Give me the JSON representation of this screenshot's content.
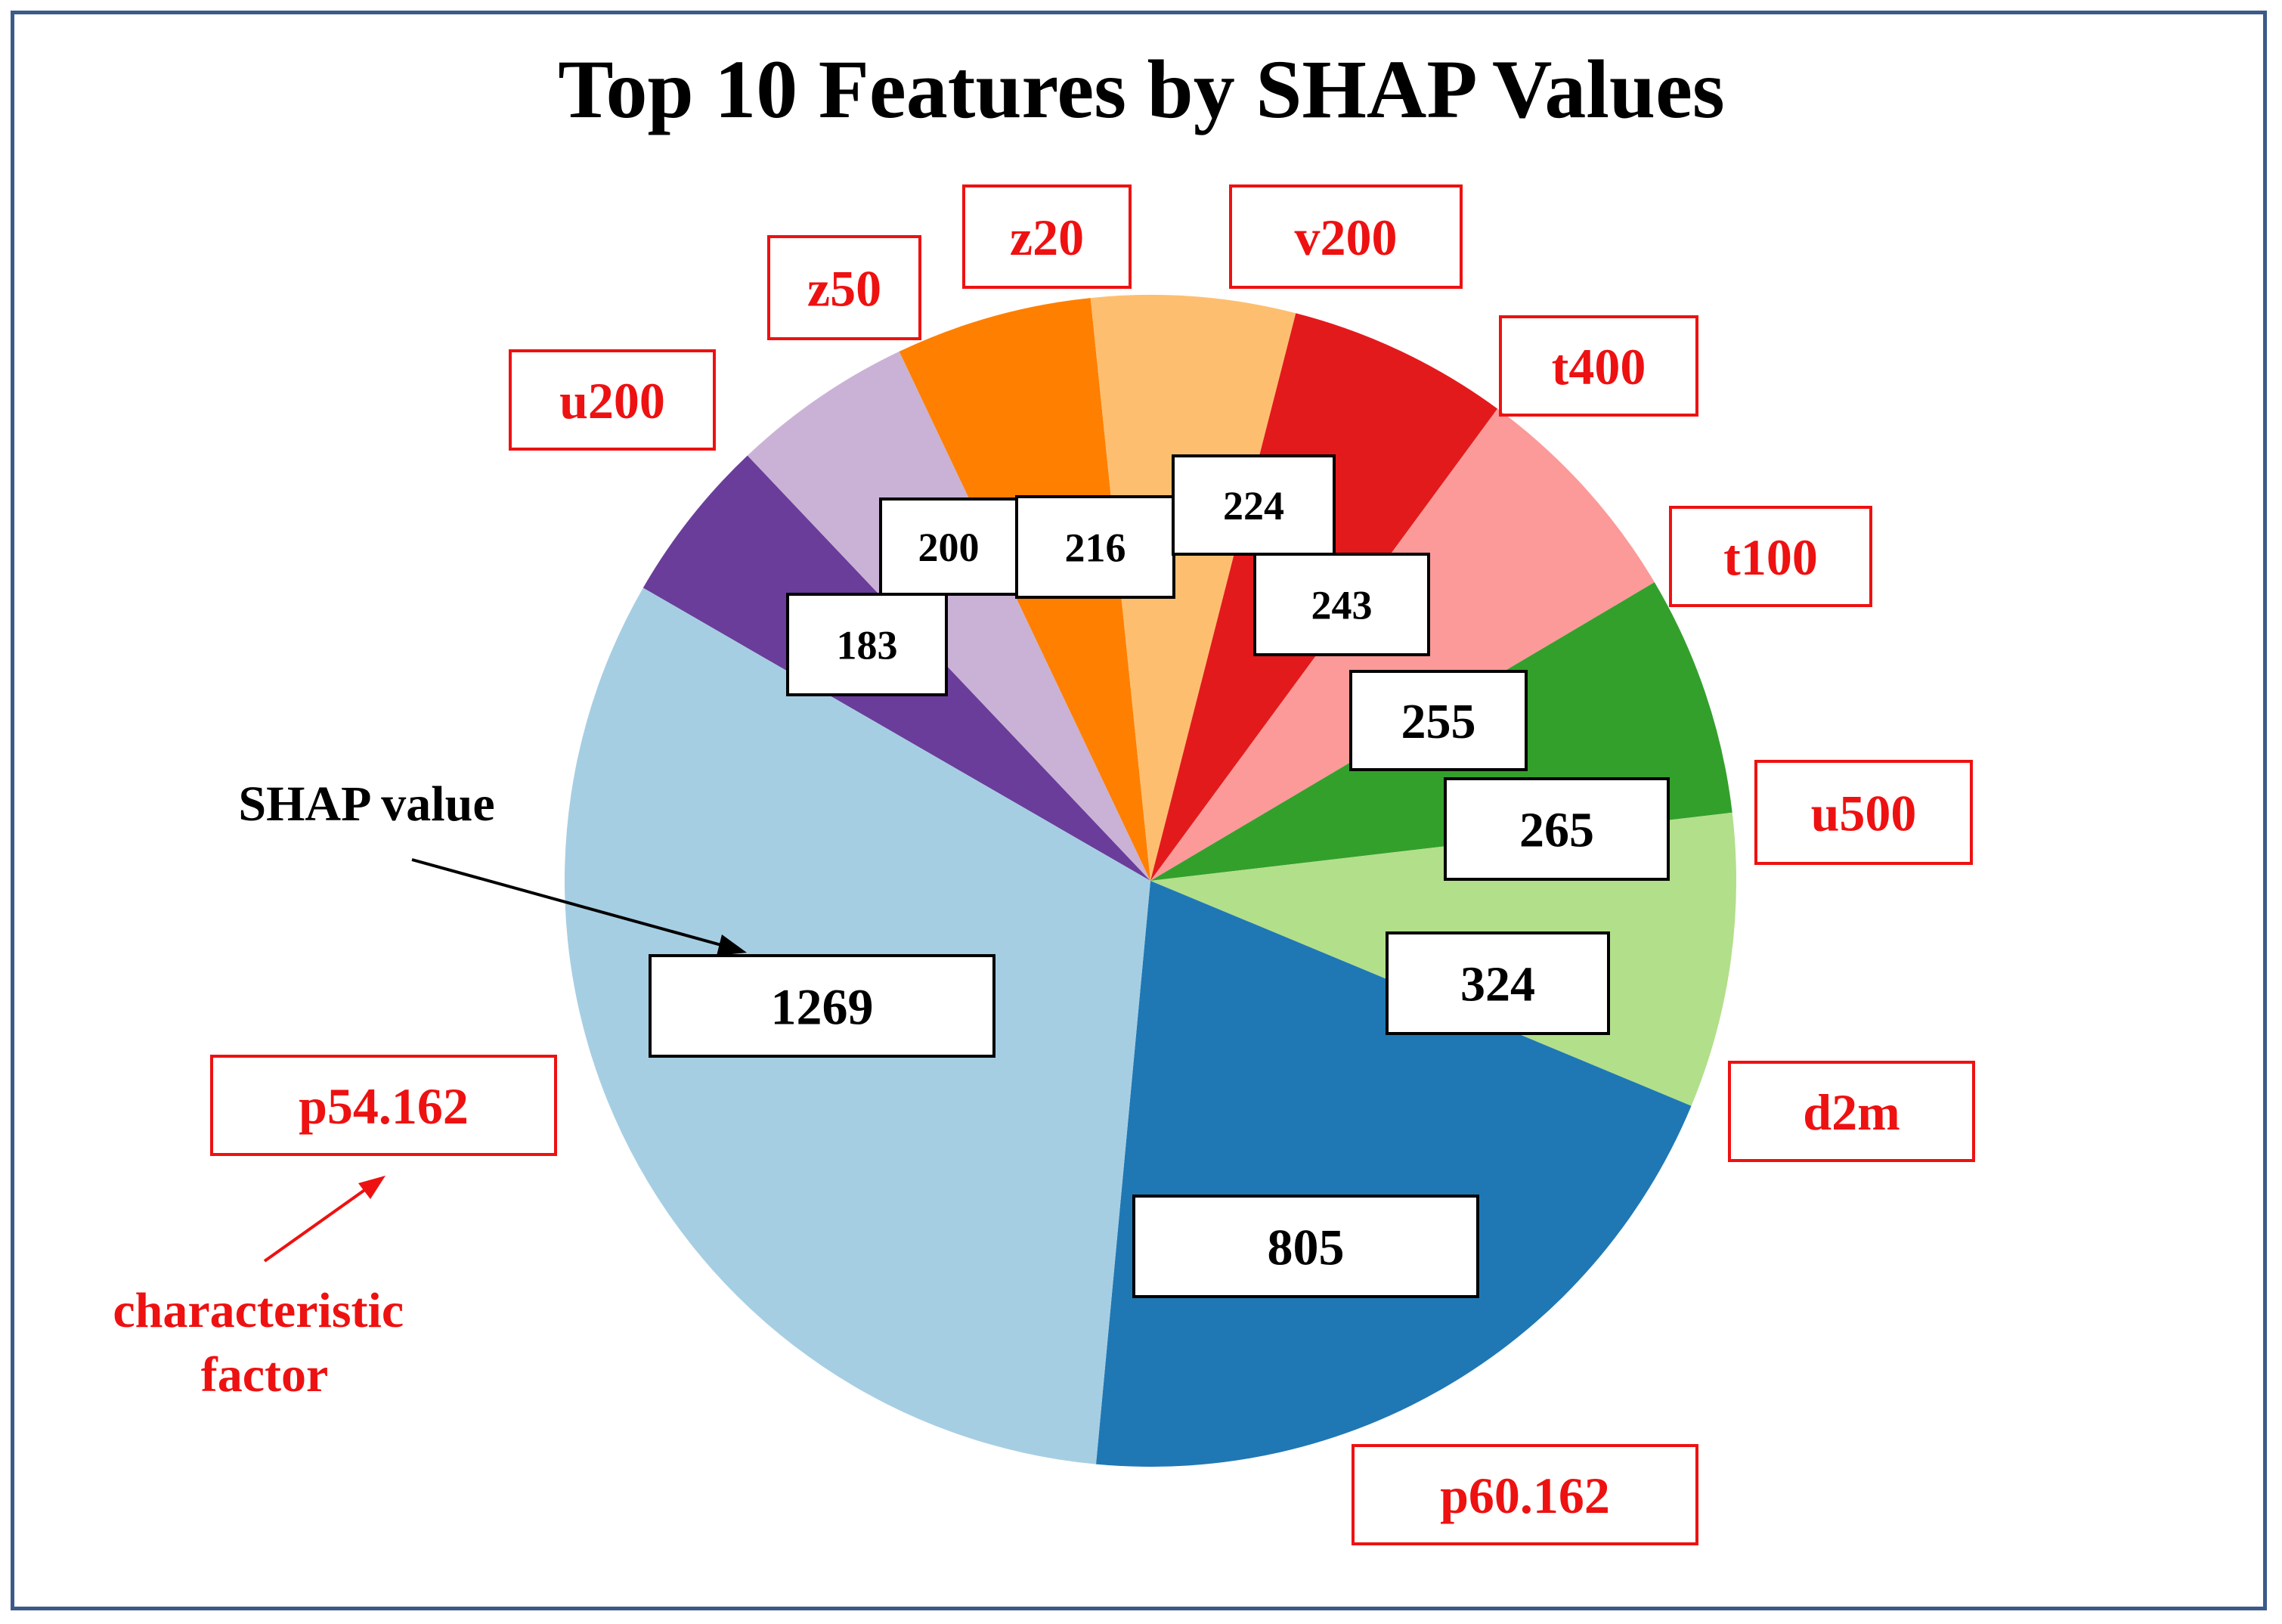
{
  "chart_data": {
    "type": "pie",
    "title": "Top 10 Features by SHAP Values",
    "start_angle_deg": 300,
    "direction": "clockwise",
    "slices": [
      {
        "name": "u200",
        "value": 183,
        "color": "#6a3d9a"
      },
      {
        "name": "z50",
        "value": 200,
        "color": "#cab2d6"
      },
      {
        "name": "z20",
        "value": 216,
        "color": "#ff7f00"
      },
      {
        "name": "v200",
        "value": 224,
        "color": "#fdbf6f"
      },
      {
        "name": "t400",
        "value": 243,
        "color": "#e31a1c"
      },
      {
        "name": "t100",
        "value": 255,
        "color": "#fb9a99"
      },
      {
        "name": "u500",
        "value": 265,
        "color": "#33a02c"
      },
      {
        "name": "d2m",
        "value": 324,
        "color": "#b2df8a"
      },
      {
        "name": "p60.162",
        "value": 805,
        "color": "#1f78b4"
      },
      {
        "name": "p54.162",
        "value": 1269,
        "color": "#a6cee3"
      }
    ],
    "annotations": [
      {
        "text": "SHAP value",
        "color": "#000000"
      },
      {
        "text": "characteristic factor",
        "lines": [
          "characteristic",
          "factor"
        ],
        "color": "#ee1111"
      }
    ]
  },
  "colors": {
    "frame": "#3b5a8a",
    "label_red": "#ee1111",
    "value_box_border": "#000000"
  }
}
